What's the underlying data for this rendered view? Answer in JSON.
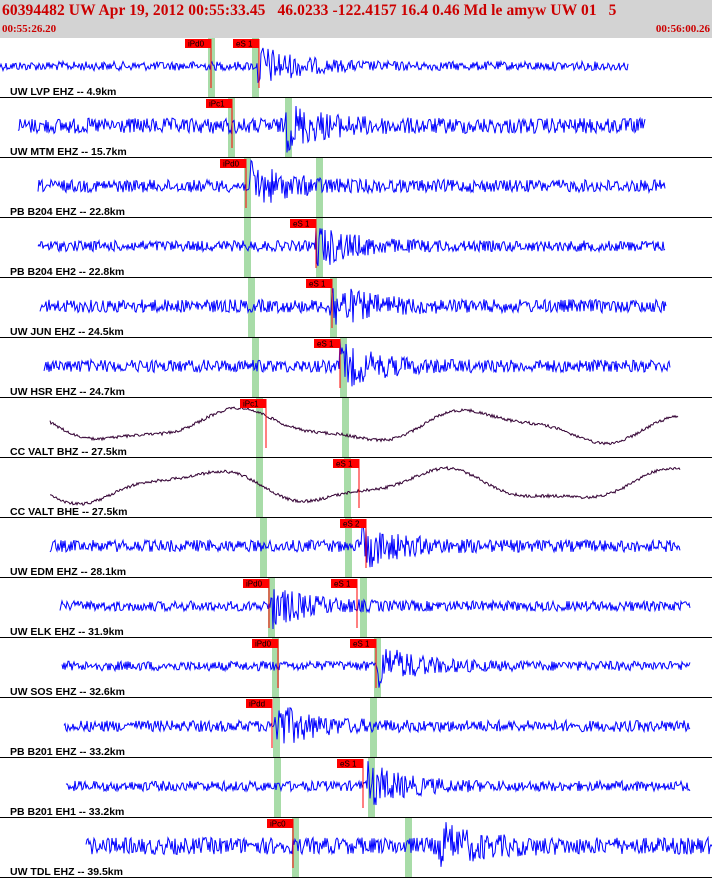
{
  "header": {
    "title": "60394482 UW Apr 19, 2012 00:55:33.45   46.0233 -122.4157 16.4 0.46 Md le amyw UW 01   5",
    "time_start": "00:55:26.20",
    "time_end": "00:56:00.26"
  },
  "colors": {
    "header_bg": "#d3d3d3",
    "header_text": "#cc0000",
    "trace": "#0000ff",
    "trace_long_period": "#330033",
    "pick_box": "#ff0000",
    "phase_band": "#a8dca8"
  },
  "traces": [
    {
      "label": "UW LVP EHZ -- 4.9km",
      "amp": 0.25,
      "style": "blue",
      "start": 0,
      "end": 628,
      "onset": 258,
      "p_band": 208,
      "s_band": 252,
      "picks": [
        {
          "text": "iPd0",
          "x": 185
        },
        {
          "text": "eS 1",
          "x": 233
        }
      ]
    },
    {
      "label": "UW MTM EHZ -- 15.7km",
      "amp": 0.8,
      "style": "blue",
      "start": 18,
      "end": 645,
      "onset": 285,
      "p_band": 228,
      "s_band": 285,
      "picks": [
        {
          "text": "iPc1",
          "x": 206
        }
      ]
    },
    {
      "label": "PB B204 EHZ -- 22.8km",
      "amp": 0.55,
      "style": "blue",
      "start": 38,
      "end": 665,
      "onset": 250,
      "p_band": 244,
      "s_band": 316,
      "picks": [
        {
          "text": "iPd0",
          "x": 220
        }
      ]
    },
    {
      "label": "PB B204 EH2 -- 22.8km",
      "amp": 0.4,
      "style": "blue",
      "start": 38,
      "end": 665,
      "onset": 316,
      "p_band": 244,
      "s_band": 316,
      "picks": [
        {
          "text": "eS 1",
          "x": 290
        }
      ]
    },
    {
      "label": "UW JUN EHZ -- 24.5km",
      "amp": 0.6,
      "style": "blue",
      "start": 40,
      "end": 666,
      "onset": 330,
      "p_band": 248,
      "s_band": 330,
      "picks": [
        {
          "text": "eS 1",
          "x": 306
        }
      ]
    },
    {
      "label": "UW HSR EHZ -- 24.7km",
      "amp": 0.55,
      "style": "blue",
      "start": 44,
      "end": 670,
      "onset": 340,
      "p_band": 252,
      "s_band": 340,
      "picks": [
        {
          "text": "eS 1",
          "x": 314
        }
      ]
    },
    {
      "label": "CC VALT BHZ -- 27.5km",
      "amp": 0.9,
      "style": "long",
      "start": 50,
      "end": 678,
      "onset": 0,
      "p_band": 256,
      "s_band": 342,
      "picks": [
        {
          "text": "iPc1",
          "x": 240
        }
      ]
    },
    {
      "label": "CC VALT BHE -- 27.5km",
      "amp": 0.9,
      "style": "long",
      "start": 50,
      "end": 680,
      "onset": 0,
      "p_band": 256,
      "s_band": 344,
      "picks": [
        {
          "text": "eS 1",
          "x": 333
        }
      ]
    },
    {
      "label": "UW EDM EHZ -- 28.1km",
      "amp": 0.5,
      "style": "blue",
      "start": 50,
      "end": 680,
      "onset": 362,
      "p_band": 260,
      "s_band": 345,
      "picks": [
        {
          "text": "eS 2",
          "x": 340
        }
      ]
    },
    {
      "label": "UW ELK EHZ -- 31.9km",
      "amp": 0.35,
      "style": "blue",
      "start": 60,
      "end": 690,
      "onset": 270,
      "p_band": 268,
      "s_band": 360,
      "picks": [
        {
          "text": "iPd0",
          "x": 243
        },
        {
          "text": "eS 1",
          "x": 331
        }
      ]
    },
    {
      "label": "UW SOS EHZ -- 32.6km",
      "amp": 0.3,
      "style": "blue",
      "start": 62,
      "end": 690,
      "onset": 378,
      "p_band": 272,
      "s_band": 374,
      "picks": [
        {
          "text": "iPd0",
          "x": 252
        },
        {
          "text": "eS 1",
          "x": 350
        }
      ]
    },
    {
      "label": "PB B201 EHZ -- 33.2km",
      "amp": 0.45,
      "style": "blue",
      "start": 64,
      "end": 690,
      "onset": 275,
      "p_band": 273,
      "s_band": 370,
      "picks": [
        {
          "text": "iPdd",
          "x": 246
        }
      ]
    },
    {
      "label": "PB B201 EH1 -- 33.2km",
      "amp": 0.35,
      "style": "blue",
      "start": 66,
      "end": 690,
      "onset": 368,
      "p_band": 274,
      "s_band": 368,
      "picks": [
        {
          "text": "eS 1",
          "x": 337
        }
      ]
    },
    {
      "label": "UW TDL EHZ -- 39.5km",
      "amp": 0.9,
      "style": "blue",
      "start": 86,
      "end": 712,
      "onset": 438,
      "p_band": 292,
      "s_band": 405,
      "picks": [
        {
          "text": "iPc0",
          "x": 267
        }
      ]
    }
  ]
}
